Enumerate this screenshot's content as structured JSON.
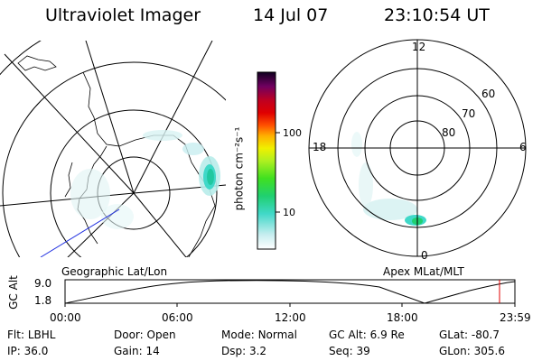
{
  "header": {
    "title": "Ultraviolet Imager",
    "date": "14 Jul 07",
    "time": "23:10:54 UT"
  },
  "colorbar": {
    "unit_label": "photon cm⁻²s⁻¹",
    "ticks": [
      "100",
      "10"
    ]
  },
  "geo_panel": {
    "label": "Geographic Lat/Lon"
  },
  "apex_panel": {
    "label": "Apex MLat/MLT",
    "mlt_labels": [
      "12",
      "18",
      "6",
      "0"
    ],
    "lat_labels": [
      "60",
      "70",
      "80"
    ]
  },
  "altitude_plot": {
    "ylabel": "GC Alt",
    "y_ticks": [
      "9.0",
      "1.8"
    ],
    "x_ticks": [
      "00:00",
      "06:00",
      "12:00",
      "18:00",
      "23:59"
    ],
    "marker_color": "#e00000"
  },
  "info": {
    "row1": [
      {
        "k": "Flt:",
        "v": "LBHL"
      },
      {
        "k": "Door:",
        "v": "Open"
      },
      {
        "k": "Mode:",
        "v": "Normal"
      },
      {
        "k": "GC Alt:",
        "v": "6.9 Re"
      },
      {
        "k": "GLat:",
        "v": "-80.7"
      }
    ],
    "row2": [
      {
        "k": "IP:",
        "v": "36.0"
      },
      {
        "k": "Gain:",
        "v": "14"
      },
      {
        "k": "Dsp:",
        "v": "3.2"
      },
      {
        "k": "Seq:",
        "v": "39"
      },
      {
        "k": "GLon:",
        "v": "305.6"
      }
    ]
  }
}
